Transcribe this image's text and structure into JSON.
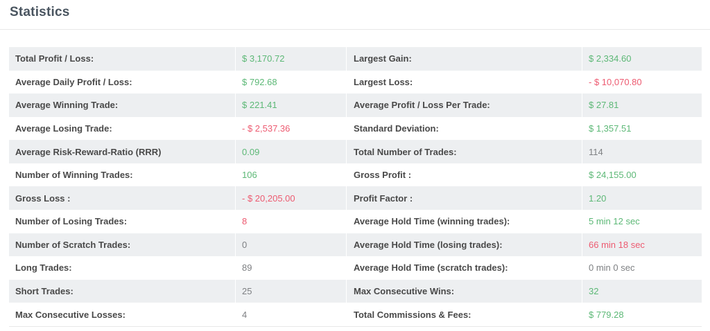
{
  "page": {
    "title": "Statistics"
  },
  "colors": {
    "green": "#5cb876",
    "red": "#ed5b71",
    "neutral": "#7e8083",
    "label": "#494949",
    "title": "#4a5560",
    "row_alt": "#edeff1",
    "divider": "#e8e8e8"
  },
  "table": {
    "rows": [
      {
        "left": {
          "label": "Total Profit / Loss:",
          "value": "$ 3,170.72",
          "color": "green"
        },
        "right": {
          "label": "Largest Gain:",
          "value": "$ 2,334.60",
          "color": "green"
        }
      },
      {
        "left": {
          "label": "Average Daily Profit / Loss:",
          "value": "$ 792.68",
          "color": "green"
        },
        "right": {
          "label": "Largest Loss:",
          "value": "- $ 10,070.80",
          "color": "red"
        }
      },
      {
        "left": {
          "label": "Average Winning Trade:",
          "value": "$ 221.41",
          "color": "green"
        },
        "right": {
          "label": "Average Profit / Loss Per Trade:",
          "value": "$ 27.81",
          "color": "green"
        }
      },
      {
        "left": {
          "label": "Average Losing Trade:",
          "value": "- $ 2,537.36",
          "color": "red"
        },
        "right": {
          "label": "Standard Deviation:",
          "value": "$ 1,357.51",
          "color": "green"
        }
      },
      {
        "left": {
          "label": "Average Risk-Reward-Ratio (RRR)",
          "value": "0.09",
          "color": "green"
        },
        "right": {
          "label": "Total Number of Trades:",
          "value": "114",
          "color": "neutral"
        }
      },
      {
        "left": {
          "label": "Number of Winning Trades:",
          "value": "106",
          "color": "green"
        },
        "right": {
          "label": "Gross Profit :",
          "value": "$ 24,155.00",
          "color": "green"
        }
      },
      {
        "left": {
          "label": "Gross Loss :",
          "value": "- $ 20,205.00",
          "color": "red"
        },
        "right": {
          "label": "Profit Factor :",
          "value": "1.20",
          "color": "green"
        }
      },
      {
        "left": {
          "label": "Number of Losing Trades:",
          "value": "8",
          "color": "red"
        },
        "right": {
          "label": "Average Hold Time (winning trades):",
          "value": "5 min 12 sec",
          "color": "green"
        }
      },
      {
        "left": {
          "label": "Number of Scratch Trades:",
          "value": "0",
          "color": "neutral"
        },
        "right": {
          "label": "Average Hold Time (losing trades):",
          "value": "66 min 18 sec",
          "color": "red"
        }
      },
      {
        "left": {
          "label": "Long Trades:",
          "value": "89",
          "color": "neutral"
        },
        "right": {
          "label": "Average Hold Time (scratch trades):",
          "value": "0 min 0 sec",
          "color": "neutral"
        }
      },
      {
        "left": {
          "label": "Short Trades:",
          "value": "25",
          "color": "neutral"
        },
        "right": {
          "label": "Max Consecutive Wins:",
          "value": "32",
          "color": "green"
        }
      },
      {
        "left": {
          "label": "Max Consecutive Losses:",
          "value": "4",
          "color": "neutral"
        },
        "right": {
          "label": "Total Commissions & Fees:",
          "value": "$ 779.28",
          "color": "green"
        }
      }
    ]
  }
}
